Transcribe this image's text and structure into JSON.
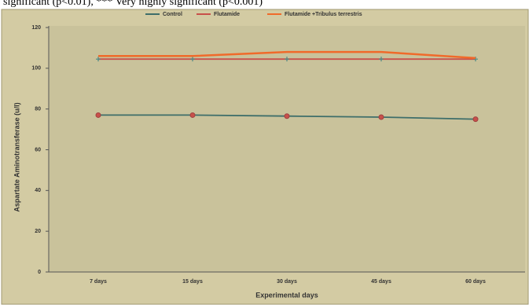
{
  "caption": "significant (p<0.01), *** Very highly significant (p<0.001)",
  "chart_data": {
    "type": "line",
    "x_label": "Experimental days",
    "y_label": "Aspartate Aminotransferase (u/l)",
    "categories": [
      "7 days",
      "15 days",
      "30 days",
      "45 days",
      "60 days"
    ],
    "series": [
      {
        "name": "Control",
        "color": "#3e6e6a",
        "values": [
          77,
          77,
          76.5,
          76,
          75
        ]
      },
      {
        "name": "Flutamide",
        "color": "#c8504a",
        "values": [
          104.5,
          104.5,
          104.5,
          104.5,
          104.5
        ]
      },
      {
        "name": "Flutamide +Tribulus terrestris",
        "color": "#f06a2a",
        "values": [
          106,
          106,
          108,
          108,
          105
        ]
      }
    ],
    "ylim": [
      0,
      120
    ],
    "yticks": [
      0,
      20,
      40,
      60,
      80,
      100,
      120
    ],
    "grid": false
  }
}
